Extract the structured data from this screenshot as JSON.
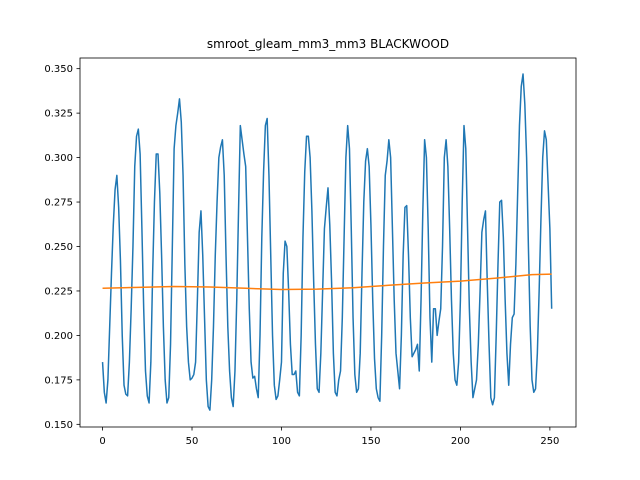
{
  "chart_data": {
    "type": "line",
    "title": "smroot_gleam_mm3_mm3 BLACKWOOD",
    "xlabel": "",
    "ylabel": "",
    "xlim": [
      -12.6,
      264.6
    ],
    "ylim": [
      0.1485,
      0.356
    ],
    "x_ticks": [
      0,
      50,
      100,
      150,
      200,
      250
    ],
    "y_ticks": [
      0.15,
      0.175,
      0.2,
      0.225,
      0.25,
      0.275,
      0.3,
      0.325,
      0.35
    ],
    "x_tick_labels": [
      "0",
      "50",
      "100",
      "150",
      "200",
      "250"
    ],
    "y_tick_labels": [
      "0.150",
      "0.175",
      "0.200",
      "0.225",
      "0.250",
      "0.275",
      "0.300",
      "0.325",
      "0.350"
    ],
    "grid": false,
    "legend": "none",
    "colors": {
      "series1": "#1f77b4",
      "series2": "#ff7f0e"
    },
    "series": [
      {
        "color": "#1f77b4",
        "points": [
          [
            0,
            0.185
          ],
          [
            1,
            0.168
          ],
          [
            2,
            0.162
          ],
          [
            3,
            0.175
          ],
          [
            4,
            0.205
          ],
          [
            5,
            0.235
          ],
          [
            6,
            0.262
          ],
          [
            7,
            0.282
          ],
          [
            8,
            0.29
          ],
          [
            9,
            0.272
          ],
          [
            10,
            0.242
          ],
          [
            11,
            0.2
          ],
          [
            12,
            0.172
          ],
          [
            13,
            0.167
          ],
          [
            14,
            0.166
          ],
          [
            15,
            0.185
          ],
          [
            16,
            0.215
          ],
          [
            17,
            0.25
          ],
          [
            18,
            0.295
          ],
          [
            19,
            0.312
          ],
          [
            20,
            0.316
          ],
          [
            21,
            0.302
          ],
          [
            22,
            0.26
          ],
          [
            23,
            0.215
          ],
          [
            24,
            0.18
          ],
          [
            25,
            0.166
          ],
          [
            26,
            0.162
          ],
          [
            27,
            0.185
          ],
          [
            28,
            0.235
          ],
          [
            29,
            0.275
          ],
          [
            30,
            0.302
          ],
          [
            31,
            0.302
          ],
          [
            32,
            0.28
          ],
          [
            33,
            0.245
          ],
          [
            34,
            0.205
          ],
          [
            35,
            0.175
          ],
          [
            36,
            0.162
          ],
          [
            37,
            0.165
          ],
          [
            38,
            0.195
          ],
          [
            39,
            0.25
          ],
          [
            40,
            0.305
          ],
          [
            41,
            0.318
          ],
          [
            42,
            0.325
          ],
          [
            43,
            0.333
          ],
          [
            44,
            0.32
          ],
          [
            45,
            0.29
          ],
          [
            46,
            0.24
          ],
          [
            47,
            0.205
          ],
          [
            48,
            0.185
          ],
          [
            49,
            0.175
          ],
          [
            50,
            0.176
          ],
          [
            51,
            0.178
          ],
          [
            52,
            0.185
          ],
          [
            53,
            0.22
          ],
          [
            54,
            0.258
          ],
          [
            55,
            0.27
          ],
          [
            56,
            0.245
          ],
          [
            57,
            0.21
          ],
          [
            58,
            0.175
          ],
          [
            59,
            0.16
          ],
          [
            60,
            0.158
          ],
          [
            61,
            0.175
          ],
          [
            62,
            0.205
          ],
          [
            63,
            0.245
          ],
          [
            64,
            0.275
          ],
          [
            65,
            0.3
          ],
          [
            66,
            0.306
          ],
          [
            67,
            0.31
          ],
          [
            68,
            0.29
          ],
          [
            69,
            0.245
          ],
          [
            70,
            0.205
          ],
          [
            71,
            0.18
          ],
          [
            72,
            0.165
          ],
          [
            73,
            0.16
          ],
          [
            74,
            0.18
          ],
          [
            75,
            0.22
          ],
          [
            76,
            0.27
          ],
          [
            77,
            0.318
          ],
          [
            78,
            0.31
          ],
          [
            79,
            0.302
          ],
          [
            80,
            0.295
          ],
          [
            81,
            0.255
          ],
          [
            82,
            0.215
          ],
          [
            83,
            0.185
          ],
          [
            84,
            0.176
          ],
          [
            85,
            0.177
          ],
          [
            86,
            0.17
          ],
          [
            87,
            0.165
          ],
          [
            88,
            0.2
          ],
          [
            89,
            0.255
          ],
          [
            90,
            0.292
          ],
          [
            91,
            0.318
          ],
          [
            92,
            0.322
          ],
          [
            93,
            0.29
          ],
          [
            94,
            0.245
          ],
          [
            95,
            0.2
          ],
          [
            96,
            0.172
          ],
          [
            97,
            0.164
          ],
          [
            98,
            0.166
          ],
          [
            99,
            0.175
          ],
          [
            100,
            0.185
          ],
          [
            101,
            0.235
          ],
          [
            102,
            0.253
          ],
          [
            103,
            0.25
          ],
          [
            104,
            0.225
          ],
          [
            105,
            0.195
          ],
          [
            106,
            0.178
          ],
          [
            107,
            0.178
          ],
          [
            108,
            0.18
          ],
          [
            109,
            0.168
          ],
          [
            110,
            0.166
          ],
          [
            111,
            0.2
          ],
          [
            112,
            0.255
          ],
          [
            113,
            0.292
          ],
          [
            114,
            0.312
          ],
          [
            115,
            0.312
          ],
          [
            116,
            0.3
          ],
          [
            117,
            0.27
          ],
          [
            118,
            0.23
          ],
          [
            119,
            0.195
          ],
          [
            120,
            0.17
          ],
          [
            121,
            0.168
          ],
          [
            122,
            0.19
          ],
          [
            123,
            0.225
          ],
          [
            124,
            0.26
          ],
          [
            125,
            0.272
          ],
          [
            126,
            0.283
          ],
          [
            127,
            0.262
          ],
          [
            128,
            0.23
          ],
          [
            129,
            0.19
          ],
          [
            130,
            0.168
          ],
          [
            131,
            0.166
          ],
          [
            132,
            0.175
          ],
          [
            133,
            0.18
          ],
          [
            134,
            0.21
          ],
          [
            135,
            0.255
          ],
          [
            136,
            0.3
          ],
          [
            137,
            0.318
          ],
          [
            138,
            0.305
          ],
          [
            139,
            0.26
          ],
          [
            140,
            0.21
          ],
          [
            141,
            0.178
          ],
          [
            142,
            0.168
          ],
          [
            143,
            0.17
          ],
          [
            144,
            0.19
          ],
          [
            145,
            0.235
          ],
          [
            146,
            0.275
          ],
          [
            147,
            0.298
          ],
          [
            148,
            0.305
          ],
          [
            149,
            0.295
          ],
          [
            150,
            0.262
          ],
          [
            151,
            0.22
          ],
          [
            152,
            0.187
          ],
          [
            153,
            0.17
          ],
          [
            154,
            0.165
          ],
          [
            155,
            0.163
          ],
          [
            156,
            0.2
          ],
          [
            157,
            0.25
          ],
          [
            158,
            0.29
          ],
          [
            159,
            0.298
          ],
          [
            160,
            0.31
          ],
          [
            161,
            0.3
          ],
          [
            162,
            0.26
          ],
          [
            163,
            0.22
          ],
          [
            164,
            0.19
          ],
          [
            165,
            0.18
          ],
          [
            166,
            0.17
          ],
          [
            167,
            0.2
          ],
          [
            168,
            0.245
          ],
          [
            169,
            0.272
          ],
          [
            170,
            0.273
          ],
          [
            171,
            0.245
          ],
          [
            172,
            0.21
          ],
          [
            173,
            0.188
          ],
          [
            174,
            0.19
          ],
          [
            175,
            0.192
          ],
          [
            176,
            0.195
          ],
          [
            177,
            0.18
          ],
          [
            178,
            0.22
          ],
          [
            179,
            0.27
          ],
          [
            180,
            0.31
          ],
          [
            181,
            0.3
          ],
          [
            182,
            0.26
          ],
          [
            183,
            0.21
          ],
          [
            184,
            0.185
          ],
          [
            185,
            0.215
          ],
          [
            186,
            0.215
          ],
          [
            187,
            0.2
          ],
          [
            188,
            0.208
          ],
          [
            189,
            0.215
          ],
          [
            190,
            0.25
          ],
          [
            191,
            0.3
          ],
          [
            192,
            0.31
          ],
          [
            193,
            0.295
          ],
          [
            194,
            0.26
          ],
          [
            195,
            0.22
          ],
          [
            196,
            0.19
          ],
          [
            197,
            0.175
          ],
          [
            198,
            0.172
          ],
          [
            199,
            0.185
          ],
          [
            200,
            0.22
          ],
          [
            201,
            0.275
          ],
          [
            202,
            0.318
          ],
          [
            203,
            0.305
          ],
          [
            204,
            0.26
          ],
          [
            205,
            0.215
          ],
          [
            206,
            0.185
          ],
          [
            207,
            0.165
          ],
          [
            208,
            0.17
          ],
          [
            209,
            0.175
          ],
          [
            210,
            0.195
          ],
          [
            211,
            0.225
          ],
          [
            212,
            0.258
          ],
          [
            213,
            0.265
          ],
          [
            214,
            0.27
          ],
          [
            215,
            0.23
          ],
          [
            216,
            0.195
          ],
          [
            217,
            0.165
          ],
          [
            218,
            0.161
          ],
          [
            219,
            0.165
          ],
          [
            220,
            0.2
          ],
          [
            221,
            0.24
          ],
          [
            222,
            0.275
          ],
          [
            223,
            0.276
          ],
          [
            224,
            0.255
          ],
          [
            225,
            0.22
          ],
          [
            226,
            0.19
          ],
          [
            227,
            0.172
          ],
          [
            228,
            0.195
          ],
          [
            229,
            0.21
          ],
          [
            230,
            0.212
          ],
          [
            231,
            0.24
          ],
          [
            232,
            0.28
          ],
          [
            233,
            0.318
          ],
          [
            234,
            0.34
          ],
          [
            235,
            0.347
          ],
          [
            236,
            0.33
          ],
          [
            237,
            0.3
          ],
          [
            238,
            0.25
          ],
          [
            239,
            0.205
          ],
          [
            240,
            0.175
          ],
          [
            241,
            0.168
          ],
          [
            242,
            0.17
          ],
          [
            243,
            0.19
          ],
          [
            244,
            0.225
          ],
          [
            245,
            0.265
          ],
          [
            246,
            0.3
          ],
          [
            247,
            0.315
          ],
          [
            248,
            0.31
          ],
          [
            249,
            0.285
          ],
          [
            250,
            0.26
          ],
          [
            251,
            0.215
          ]
        ]
      },
      {
        "color": "#ff7f0e",
        "points": [
          [
            0,
            0.2265
          ],
          [
            20,
            0.227
          ],
          [
            40,
            0.2275
          ],
          [
            60,
            0.2272
          ],
          [
            80,
            0.2265
          ],
          [
            100,
            0.2258
          ],
          [
            120,
            0.226
          ],
          [
            140,
            0.2268
          ],
          [
            160,
            0.2282
          ],
          [
            180,
            0.2295
          ],
          [
            200,
            0.2305
          ],
          [
            220,
            0.2322
          ],
          [
            240,
            0.2342
          ],
          [
            251,
            0.2345
          ]
        ]
      }
    ]
  }
}
